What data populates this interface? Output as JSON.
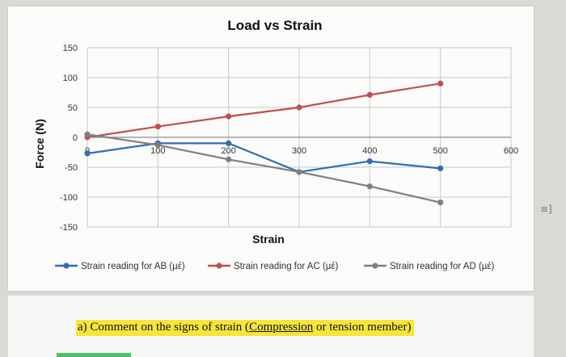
{
  "chart_data": {
    "type": "line",
    "title": "Load vs Strain",
    "xlabel": "Strain",
    "ylabel": "Force (N)",
    "xlim": [
      0,
      600
    ],
    "ylim": [
      -150,
      150
    ],
    "x_ticks": [
      0,
      100,
      200,
      300,
      400,
      500,
      600
    ],
    "x_tick_labels": [
      "0",
      "100",
      "200",
      "300",
      "400",
      "500",
      "600"
    ],
    "y_ticks": [
      150,
      100,
      50,
      0,
      -50,
      -100,
      -150
    ],
    "y_tick_labels": [
      "150",
      "100",
      "50",
      "0",
      "-50",
      "-100",
      "-150"
    ],
    "grid": true,
    "legend_position": "bottom",
    "series": [
      {
        "name": "Strain reading for AB (µέ)",
        "color": "#2f6db5",
        "x": [
          0,
          100,
          200,
          300,
          400,
          500
        ],
        "y": [
          -27,
          -10,
          -10,
          -58,
          -40,
          -52
        ]
      },
      {
        "name": "Strain reading for AC (µέ)",
        "color": "#c0504d",
        "x": [
          0,
          100,
          200,
          300,
          400,
          500
        ],
        "y": [
          0,
          18,
          35,
          50,
          71,
          90
        ]
      },
      {
        "name": "Strain reading for AD (µέ)",
        "color": "#7f7f7f",
        "x": [
          0,
          100,
          200,
          300,
          400,
          500
        ],
        "y": [
          5,
          -13,
          -37,
          -58,
          -82,
          -109
        ]
      }
    ]
  },
  "question": {
    "prefix": "a)  Comment on the signs of strain (",
    "link_word": "Compression",
    "suffix": " or tension member)"
  },
  "side_glyph": "≡]"
}
